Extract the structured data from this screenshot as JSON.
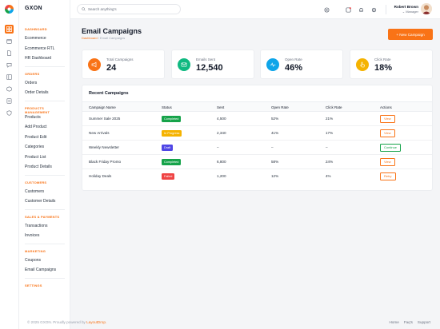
{
  "app": {
    "brand": "GXON"
  },
  "search": {
    "placeholder": "Search anything's"
  },
  "user": {
    "name": "Robert Brown",
    "role": "Manager"
  },
  "sidebar": {
    "sections": [
      {
        "title": "DASHBOARD",
        "items": [
          "Ecommerce",
          "Ecommerce RTL",
          "HR Dashboard"
        ]
      },
      {
        "title": "ORDERS",
        "items": [
          "Orders",
          "Order Details"
        ]
      },
      {
        "title": "PRODUCTS MANAGEMENT",
        "items": [
          "Products",
          "Add Product",
          "Product Edit",
          "Categories",
          "Product List",
          "Product Details"
        ]
      },
      {
        "title": "CUSTOMERS",
        "items": [
          "Customers",
          "Customer Details"
        ]
      },
      {
        "title": "SALES & PAYMENTS",
        "items": [
          "Transactions",
          "Invoices"
        ]
      },
      {
        "title": "MARKETING",
        "items": [
          "Coupons",
          "Email Campaigns"
        ]
      },
      {
        "title": "SETTINGS",
        "items": []
      }
    ]
  },
  "page": {
    "title": "Email Campaigns",
    "breadcrumb": {
      "root": "Dashboard",
      "sep": "/",
      "current": "Email Campaigns"
    },
    "new_button": "+ New Campaign"
  },
  "stats": [
    {
      "label": "Total Campaigns",
      "value": "24",
      "color": "#f97316",
      "icon": "megaphone-icon"
    },
    {
      "label": "Emails Sent",
      "value": "12,540",
      "color": "#10b981",
      "icon": "mail-icon"
    },
    {
      "label": "Open Rate",
      "value": "46%",
      "color": "#0ea5e9",
      "icon": "pulse-icon"
    },
    {
      "label": "Click Rate",
      "value": "18%",
      "color": "#f5b301",
      "icon": "pointer-icon"
    }
  ],
  "table": {
    "title": "Recent Campaigns",
    "headers": [
      "Campaign Name",
      "Status",
      "Sent",
      "Open Rate",
      "Click Rate",
      "Actions"
    ],
    "rows": [
      {
        "name": "Summer Sale 2025",
        "status": "Completed",
        "status_color": "#16a34a",
        "sent": "4,500",
        "open": "52%",
        "click": "21%",
        "action": "View",
        "action_color": "#f97316"
      },
      {
        "name": "New Arrivals",
        "status": "In Progress",
        "status_color": "#f5b301",
        "sent": "2,340",
        "open": "41%",
        "click": "17%",
        "action": "View",
        "action_color": "#f97316"
      },
      {
        "name": "Weekly Newsletter",
        "status": "Draft",
        "status_color": "#4f46e5",
        "sent": "–",
        "open": "–",
        "click": "–",
        "action": "Continue",
        "action_color": "#16a34a"
      },
      {
        "name": "Black Friday Promo",
        "status": "Completed",
        "status_color": "#16a34a",
        "sent": "6,800",
        "open": "58%",
        "click": "24%",
        "action": "View",
        "action_color": "#f97316"
      },
      {
        "name": "Holiday Deals",
        "status": "Failed",
        "status_color": "#ef4444",
        "sent": "1,200",
        "open": "12%",
        "click": "4%",
        "action": "Retry",
        "action_color": "#f97316"
      }
    ]
  },
  "footer": {
    "copyright": "© 2025 GXON. Proudly powered by",
    "powered_by": "LayoutDrop.",
    "links": [
      "Home",
      "Faq's",
      "Support"
    ]
  }
}
